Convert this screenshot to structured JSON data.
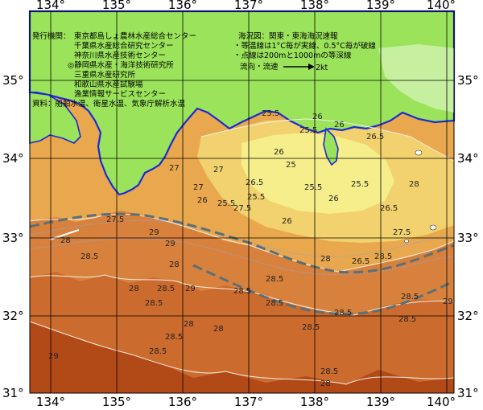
{
  "map": {
    "lon_ticks": [
      "134°",
      "135°",
      "136°",
      "137°",
      "138°",
      "139°",
      "140°"
    ],
    "lat_ticks": [
      "35°",
      "34°",
      "33°",
      "32°",
      "31°"
    ],
    "colors": {
      "land": "#9be35a",
      "sea_25": "#f6ee8a",
      "sea_26": "#f2d26e",
      "sea_27": "#e9a84e",
      "sea_28": "#d8813c",
      "sea_28_5": "#cc6b2e",
      "sea_29": "#b24a18",
      "coast_line": "#1c2ad6",
      "current_path": "#5b6f78",
      "depth_line": "#9aa0c8"
    }
  },
  "legend_left": {
    "issuers_label": "発行機関：",
    "issuers": [
      "東京都島しょ農林水産総合センター",
      "千葉県水産総合研究センター",
      "神奈川県水産技術センター",
      "◎静岡県水産・海洋技術研究所",
      "三重県水産研究所",
      "和歌山県水産試験場",
      "漁業情報サービスセンター"
    ],
    "source": "資料：船舶水温、衛星水温、気象庁解析水温"
  },
  "legend_right": {
    "title": "海況図：関東・東海海況速報",
    "note1": "・等温線は1°C毎が実線、0.5°C毎が破線",
    "note2": "・点線は200mと1000mの等深線",
    "flow_label": "流向・流速",
    "flow_value": "2kt"
  },
  "isotherm_labels": [
    "25.5",
    "26",
    "26",
    "26.5",
    "26",
    "25.5",
    "25",
    "25.5",
    "25.5",
    "26",
    "26",
    "26.5",
    "25.5",
    "28",
    "27",
    "27",
    "26.5",
    "27",
    "26",
    "27.5",
    "25.5",
    "27.5",
    "26.5",
    "28",
    "28.5",
    "27.5",
    "28",
    "29",
    "29",
    "28",
    "28.5",
    "28",
    "28.5",
    "29",
    "28.5",
    "28.5",
    "28.5",
    "28",
    "28.5",
    "28.5",
    "28",
    "28.5",
    "28.5",
    "28.5",
    "29",
    "29",
    "28.5",
    "28.5",
    "28.5",
    "28"
  ]
}
